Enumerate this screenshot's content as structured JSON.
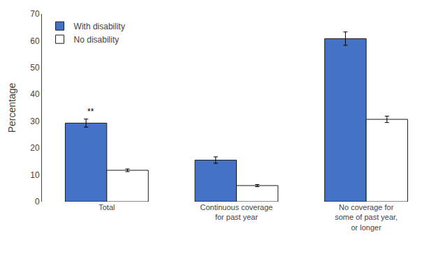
{
  "chart_data": {
    "type": "bar",
    "categories": [
      "Total",
      "Continuous coverage\nfor past year",
      "No coverage for\nsome of past year,\nor longer"
    ],
    "series": [
      {
        "name": "With disability",
        "color": "#4472C4",
        "values": [
          29.3,
          15.5,
          60.8
        ],
        "errors": [
          1.5,
          1.2,
          2.5
        ]
      },
      {
        "name": "No disability",
        "color": "#FFFFFF",
        "values": [
          11.7,
          6.0,
          30.7
        ],
        "errors": [
          0.5,
          0.4,
          1.2
        ]
      }
    ],
    "ylabel": "Percentage",
    "ylim": [
      0,
      70
    ],
    "yticks": [
      0,
      10,
      20,
      30,
      40,
      50,
      60,
      70
    ],
    "grid": false,
    "legend": "upper left",
    "annotations": [
      {
        "text": "**",
        "category": "Total",
        "series": "With disability"
      }
    ]
  }
}
